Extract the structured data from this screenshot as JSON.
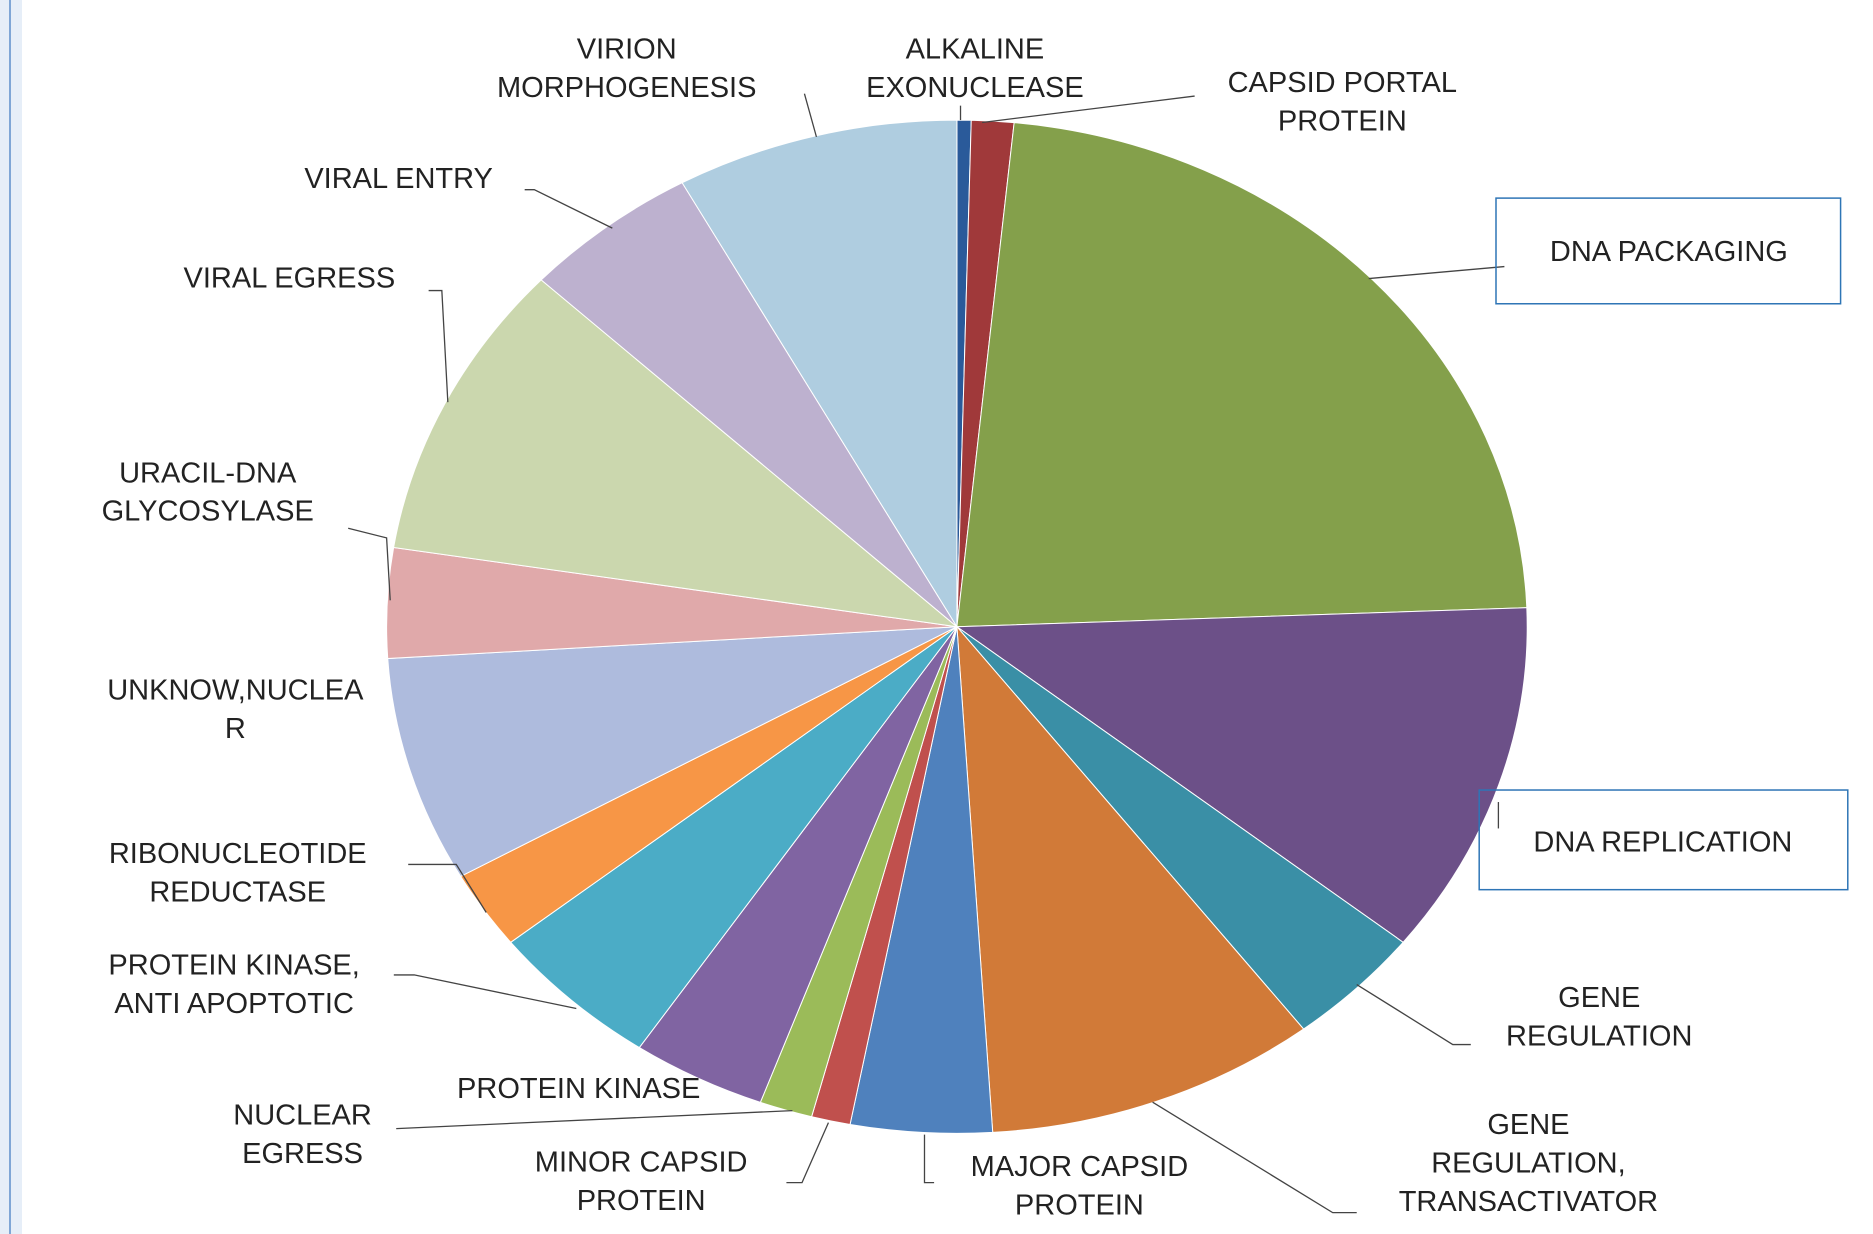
{
  "chart_data": {
    "type": "pie",
    "categories": [
      "ALKALINE EXONUCLEASE",
      "CAPSID PORTAL PROTEIN",
      "DNA PACKAGING",
      "DNA REPLICATION",
      "GENE REGULATION",
      "GENE REGULATION, TRANSACTIVATOR",
      "MAJOR CAPSID PROTEIN",
      "MINOR CAPSID PROTEIN",
      "NUCLEAR EGRESS",
      "PROTEIN KINASE",
      "PROTEIN KINASE, ANTI APOPTOTIC",
      "RIBONUCLEOTIDE REDUCTASE",
      "UNKNOW,NUCLEAR",
      "URACIL-DNA GLYCOSYLASE",
      "VIRAL EGRESS",
      "VIRAL ENTRY",
      "VIRION MORPHOGENESIS"
    ],
    "values": [
      0.4,
      1.2,
      22.8,
      11.3,
      3.9,
      9.4,
      4.0,
      1.1,
      1.5,
      3.8,
      4.9,
      2.5,
      7.2,
      3.5,
      9.5,
      5.0,
      8.0
    ],
    "colors": [
      "#2a5a9a",
      "#a0393a",
      "#84a04b",
      "#6c5088",
      "#3a8fa6",
      "#d17a38",
      "#4f81bd",
      "#c0504d",
      "#9bbb59",
      "#8064a2",
      "#4bacc6",
      "#f79646",
      "#aebbdd",
      "#e0a9aa",
      "#cbd7ae",
      "#bdb1cf",
      "#afcde0"
    ]
  }
}
